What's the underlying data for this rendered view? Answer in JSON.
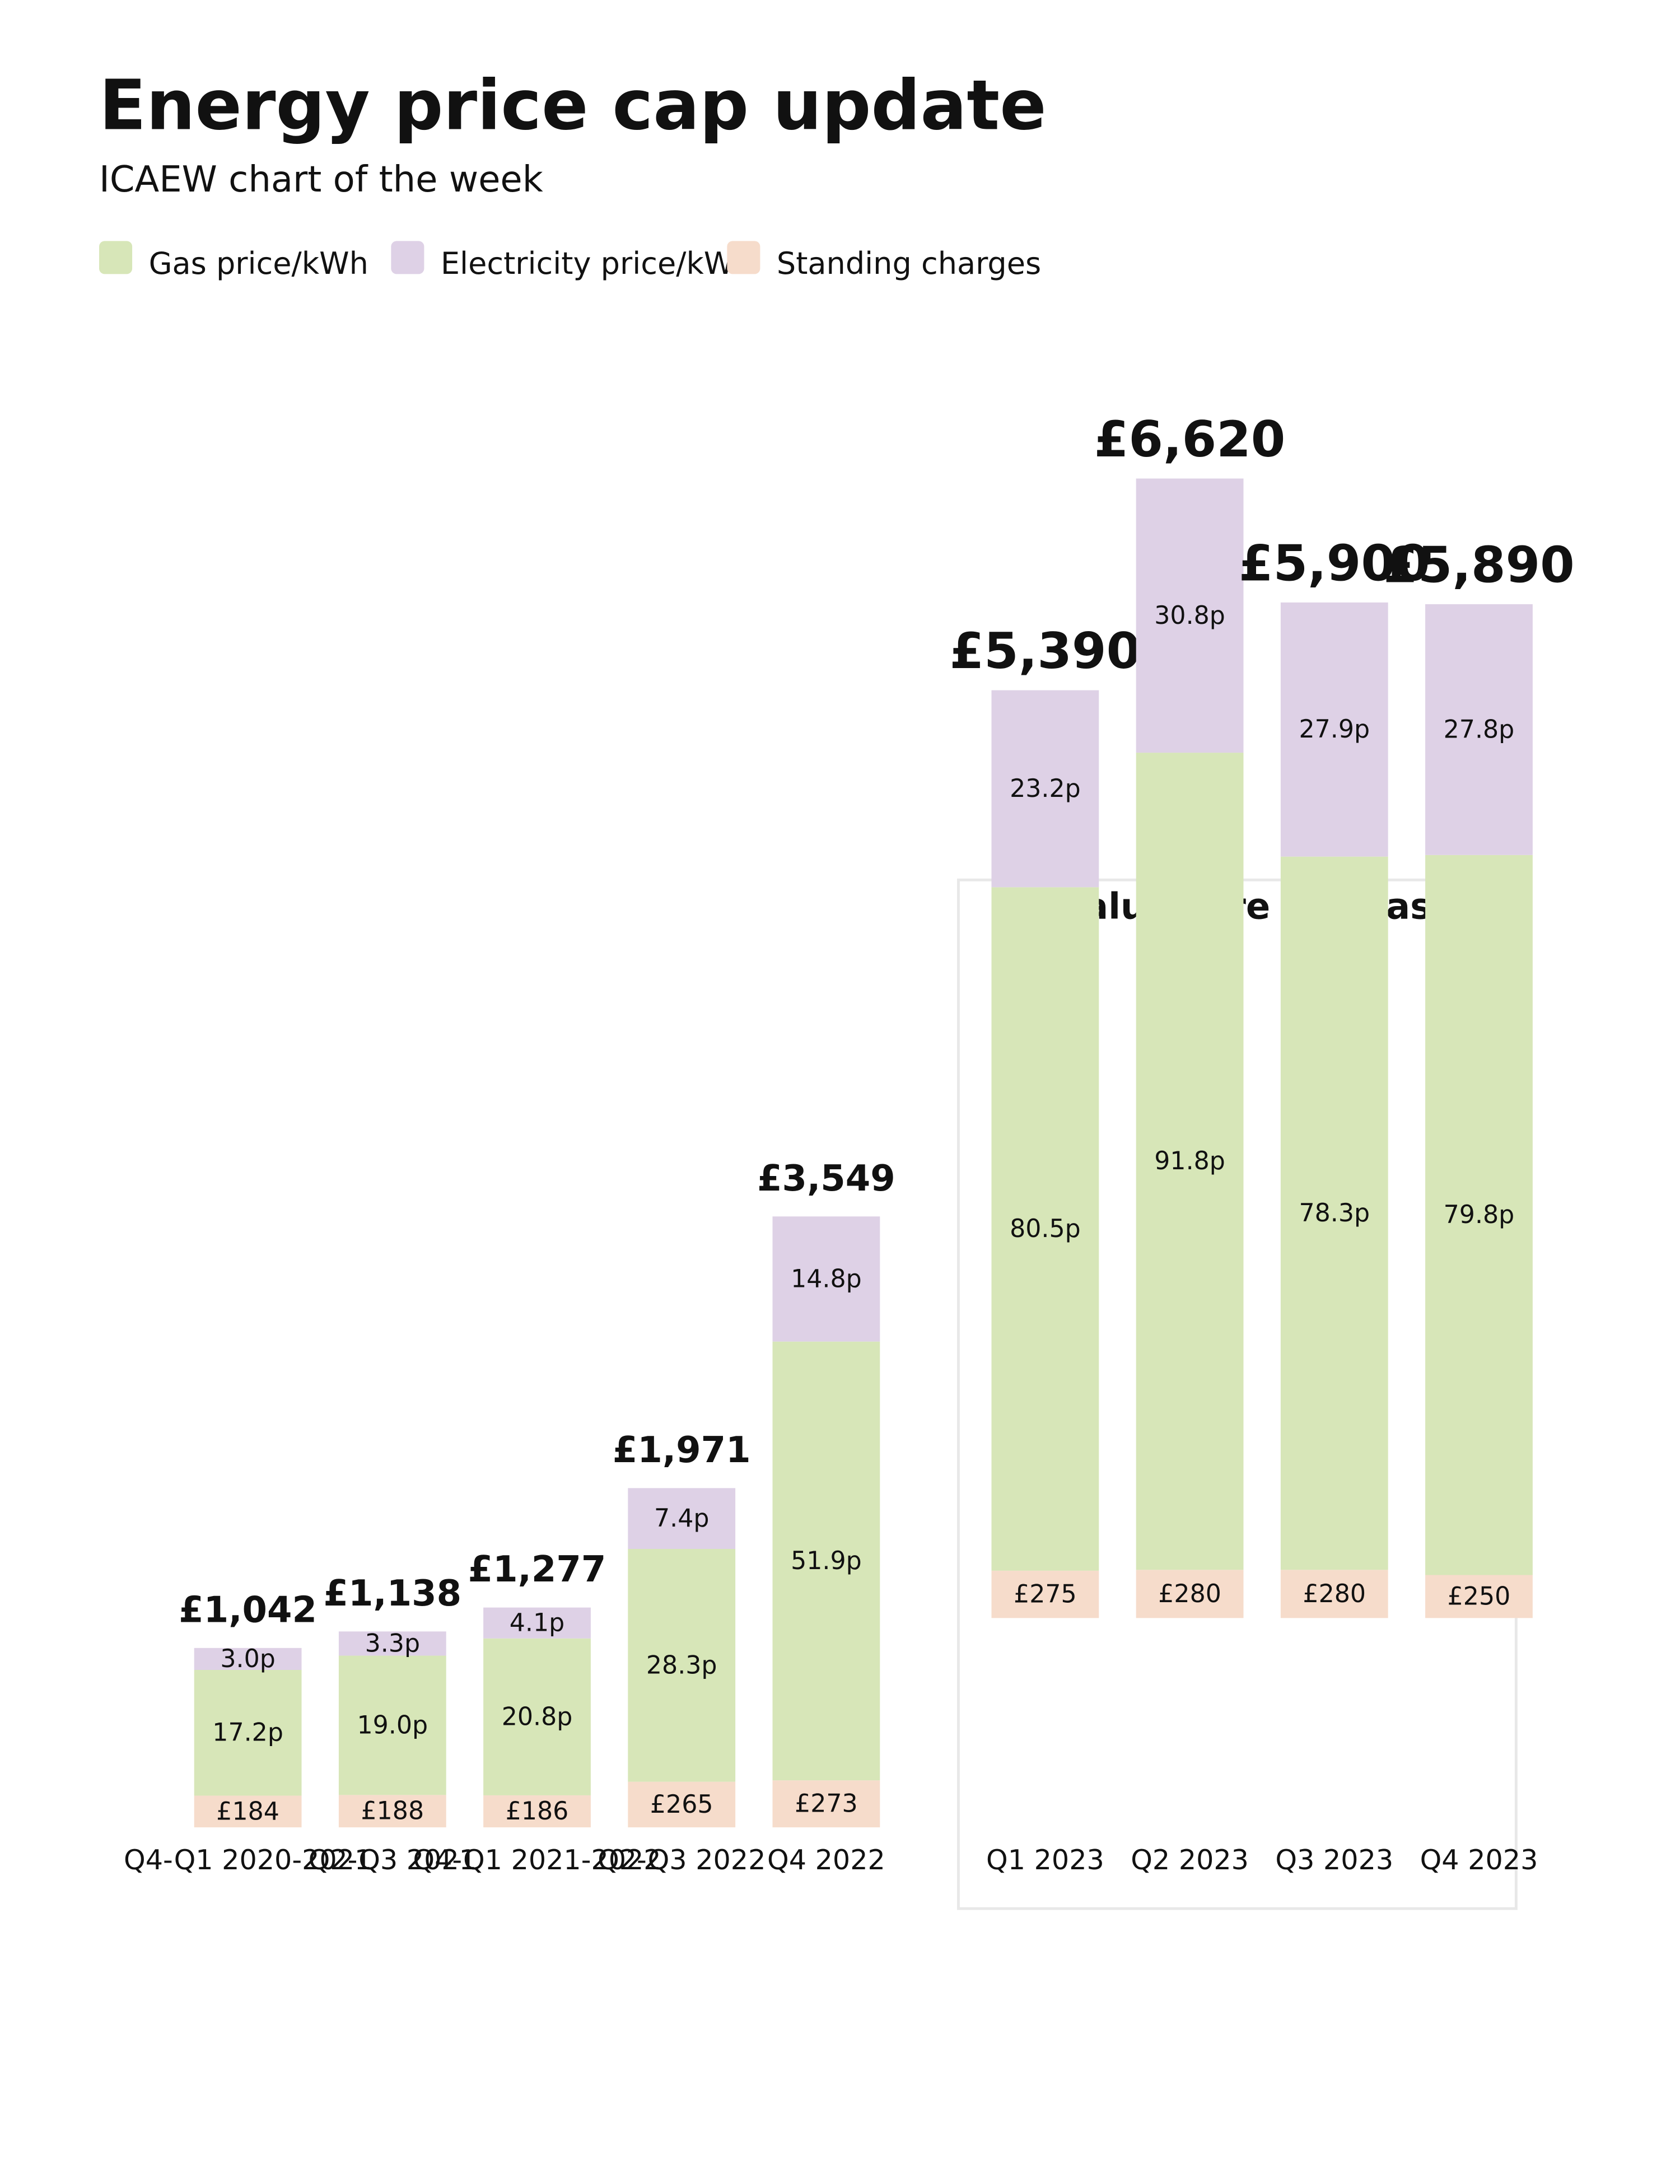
{
  "chart_data": {
    "type": "bar",
    "stacked": true,
    "title": "Energy price cap update",
    "subtitle": "ICAEW chart of the week",
    "annotation": "Values are forecasts",
    "categories": [
      "Q4-Q1 2020-2021",
      "Q2-Q3 2021",
      "Q4-Q1 2021-2022",
      "Q2-Q3 2022",
      "Q4 2022",
      "Q1 2023",
      "Q2 2023",
      "Q3 2023",
      "Q4 2023"
    ],
    "series": [
      {
        "name": "Gas price/kWh",
        "color": "#d7e6b8",
        "values": [
          17.2,
          19.0,
          20.8,
          28.3,
          51.9,
          80.5,
          91.8,
          78.3,
          79.8
        ],
        "value_labels": [
          "17.2p",
          "19.0p",
          "20.8p",
          "28.3p",
          "51.9p",
          "80.5p",
          "91.8p",
          "78.3p",
          "79.8p"
        ]
      },
      {
        "name": "Electricity price/kWh",
        "color": "#ded1e6",
        "values": [
          3.0,
          3.3,
          4.1,
          7.4,
          14.8,
          23.2,
          30.8,
          27.9,
          27.8
        ],
        "value_labels": [
          "3.0p",
          "3.3p",
          "4.1p",
          "7.4p",
          "14.8p",
          "23.2p",
          "30.8p",
          "27.9p",
          "27.8p"
        ]
      },
      {
        "name": "Standing charges",
        "color": "#f6dccb",
        "values": [
          184,
          188,
          186,
          265,
          273,
          275,
          280,
          280,
          250
        ],
        "value_labels": [
          "£184",
          "£188",
          "£186",
          "£265",
          "£273",
          "£275",
          "£280",
          "£280",
          "£250"
        ]
      }
    ],
    "totals": {
      "values": [
        1042,
        1138,
        1277,
        1971,
        3549,
        5390,
        6620,
        5900,
        5890
      ],
      "value_labels": [
        "£1,042",
        "£1,138",
        "£1,277",
        "£1,971",
        "£3,549",
        "£5,390",
        "£6,620",
        "£5,900",
        "£5,890"
      ]
    }
  }
}
